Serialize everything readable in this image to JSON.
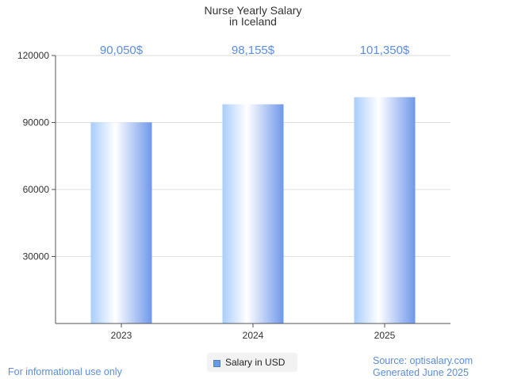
{
  "chart_data": {
    "type": "bar",
    "title": "Nurse Yearly Salary",
    "subtitle": "in Iceland",
    "categories": [
      "2023",
      "2024",
      "2025"
    ],
    "series": [
      {
        "name": "Salary in USD",
        "values": [
          90050,
          98155,
          101350
        ]
      }
    ],
    "data_labels": [
      "90,050$",
      "98,155$",
      "101,350$"
    ],
    "ylim": [
      0,
      120000
    ],
    "yticks": [
      30000,
      60000,
      90000,
      120000
    ],
    "ytick_labels": [
      "30000",
      "60000",
      "90000",
      "120000"
    ],
    "grid": true,
    "legend": "bottom-center",
    "colors": {
      "bar_light": "#ffffff",
      "bar_mid": "#b9d8ff",
      "bar_dark": "#6f98ea",
      "label": "#5b8ee0",
      "grid": "#dddddd",
      "axis": "#555555"
    }
  },
  "footer": {
    "note": "For informational use only",
    "source": "Source: optisalary.com",
    "generated": "Generated June 2025"
  }
}
